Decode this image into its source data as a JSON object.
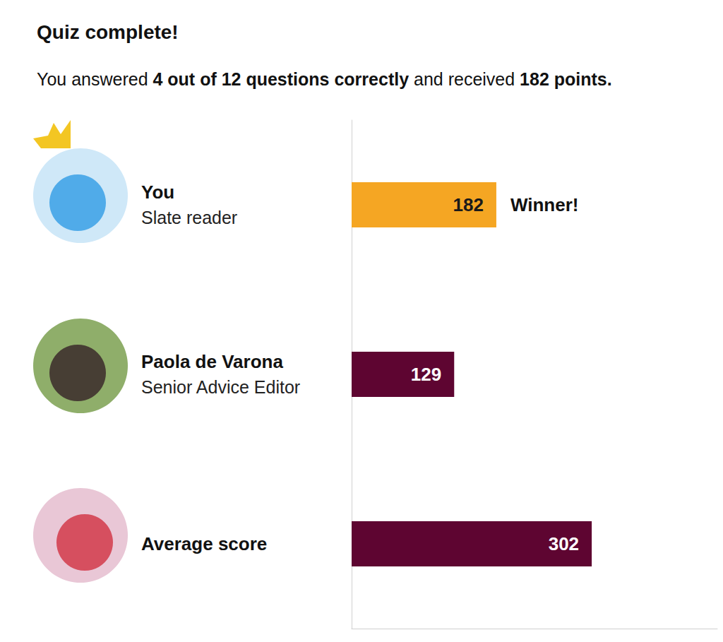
{
  "chart_data": {
    "type": "bar",
    "orientation": "horizontal",
    "title": "Quiz complete!",
    "subtitle": [
      "You answered ",
      "4 out of 12 questions correctly",
      " and received ",
      "182 points."
    ],
    "categories": [
      "You\nSlate reader",
      "Paola de Varona\nSenior Advice Editor",
      "Average score"
    ],
    "values": [
      182,
      129,
      302
    ],
    "colors": [
      "#f5a623",
      "#5e0531",
      "#5e0531"
    ],
    "data_labels": true,
    "tick_labels": "y",
    "grid": false,
    "xlim": [
      0,
      460
    ],
    "annotations": [
      {
        "text": "Winner!",
        "category": "You\nSlate reader"
      }
    ]
  }
}
